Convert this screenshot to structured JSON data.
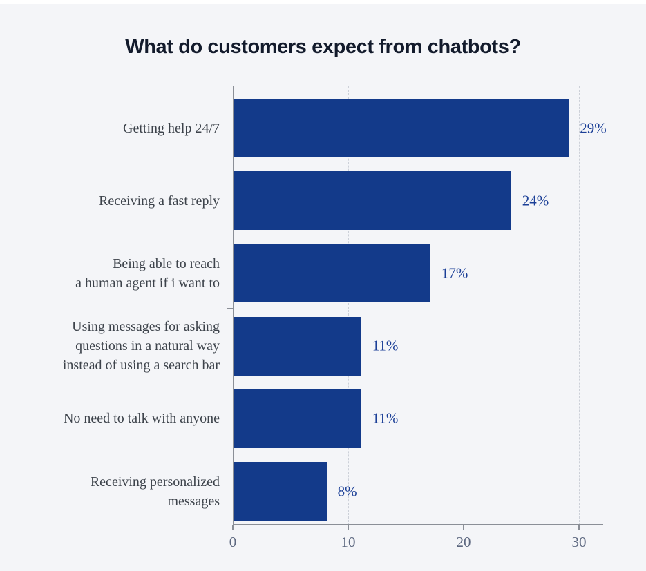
{
  "page": {
    "background_color": "#f4f5f8",
    "top_strip_color": "#ffffff"
  },
  "chart_data": {
    "type": "bar",
    "orientation": "horizontal",
    "title": "What do customers expect from chatbots?",
    "categories": [
      "Getting help 24/7",
      "Receiving a fast reply",
      "Being able to reach\na human agent if i want to",
      "Using messages for asking\nquestions in a natural way\ninstead of using a search bar",
      "No need to talk with anyone",
      "Receiving personalized\nmessages"
    ],
    "values": [
      29,
      24,
      17,
      11,
      11,
      8
    ],
    "value_labels": [
      "29%",
      "24%",
      "17%",
      "11%",
      "11%",
      "8%"
    ],
    "xlabel": "",
    "ylabel": "",
    "x_ticks": [
      0,
      10,
      20,
      30
    ],
    "xlim": [
      0,
      32.1
    ],
    "grid": "dotted vertical gridlines at x ticks, dotted horizontal midline",
    "legend": "none",
    "colors": {
      "bar": "#133a8a",
      "value_label": "#1b3f97",
      "category_label": "#3d434b",
      "tick_label": "#5d6880",
      "axis": "#8b8f97",
      "gridline": "#ccd0d8",
      "title": "#131b2c"
    }
  }
}
